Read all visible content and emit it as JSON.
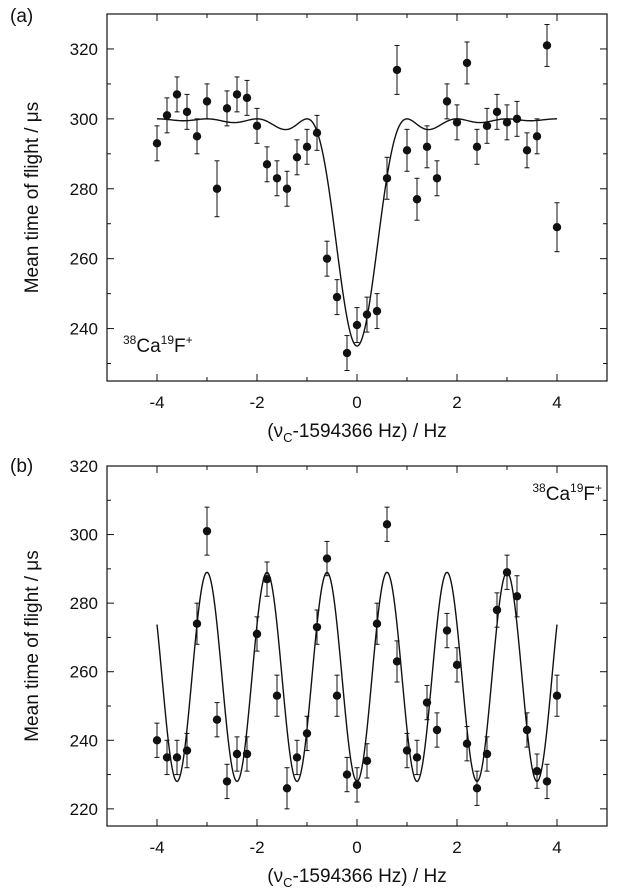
{
  "chart_data": [
    {
      "type": "scatter",
      "panel_label": "(a)",
      "annotation": {
        "m1": "38",
        "e1": "Ca",
        "m2": "19",
        "e2": "F",
        "charge": "+"
      },
      "xlabel": {
        "pre": "(ν",
        "sub": "C",
        "post": "-1594366 Hz) / Hz"
      },
      "ylabel": "Mean time of flight / μs",
      "xlim": [
        -5,
        5
      ],
      "ylim": [
        225,
        330
      ],
      "xticks": [
        -4,
        -2,
        0,
        2,
        4
      ],
      "xtick_labels": [
        "-4",
        "-2",
        "0",
        "2",
        "4"
      ],
      "yticks": [
        240,
        260,
        280,
        300,
        320
      ],
      "ytick_labels": [
        "240",
        "260",
        "280",
        "300",
        "320"
      ],
      "fit": "resonance-line",
      "points": [
        {
          "x": -4.0,
          "y": 293,
          "err": 5
        },
        {
          "x": -3.8,
          "y": 301,
          "err": 5
        },
        {
          "x": -3.6,
          "y": 307,
          "err": 5
        },
        {
          "x": -3.4,
          "y": 302,
          "err": 5
        },
        {
          "x": -3.2,
          "y": 295,
          "err": 5
        },
        {
          "x": -3.0,
          "y": 305,
          "err": 5
        },
        {
          "x": -2.8,
          "y": 280,
          "err": 8
        },
        {
          "x": -2.6,
          "y": 303,
          "err": 5
        },
        {
          "x": -2.4,
          "y": 307,
          "err": 5
        },
        {
          "x": -2.2,
          "y": 306,
          "err": 5
        },
        {
          "x": -2.0,
          "y": 298,
          "err": 5
        },
        {
          "x": -1.8,
          "y": 287,
          "err": 5
        },
        {
          "x": -1.6,
          "y": 283,
          "err": 5
        },
        {
          "x": -1.4,
          "y": 280,
          "err": 5
        },
        {
          "x": -1.2,
          "y": 289,
          "err": 5
        },
        {
          "x": -1.0,
          "y": 292,
          "err": 5
        },
        {
          "x": -0.8,
          "y": 296,
          "err": 5
        },
        {
          "x": -0.6,
          "y": 260,
          "err": 5
        },
        {
          "x": -0.4,
          "y": 249,
          "err": 5
        },
        {
          "x": -0.2,
          "y": 233,
          "err": 5
        },
        {
          "x": 0.0,
          "y": 241,
          "err": 5
        },
        {
          "x": 0.2,
          "y": 244,
          "err": 5
        },
        {
          "x": 0.4,
          "y": 245,
          "err": 5
        },
        {
          "x": 0.6,
          "y": 283,
          "err": 6
        },
        {
          "x": 0.8,
          "y": 314,
          "err": 7
        },
        {
          "x": 1.0,
          "y": 291,
          "err": 6
        },
        {
          "x": 1.2,
          "y": 277,
          "err": 6
        },
        {
          "x": 1.4,
          "y": 292,
          "err": 6
        },
        {
          "x": 1.6,
          "y": 283,
          "err": 5
        },
        {
          "x": 1.8,
          "y": 305,
          "err": 5
        },
        {
          "x": 2.0,
          "y": 299,
          "err": 5
        },
        {
          "x": 2.2,
          "y": 316,
          "err": 6
        },
        {
          "x": 2.4,
          "y": 292,
          "err": 5
        },
        {
          "x": 2.6,
          "y": 298,
          "err": 5
        },
        {
          "x": 2.8,
          "y": 302,
          "err": 5
        },
        {
          "x": 3.0,
          "y": 299,
          "err": 5
        },
        {
          "x": 3.2,
          "y": 300,
          "err": 5
        },
        {
          "x": 3.4,
          "y": 291,
          "err": 5
        },
        {
          "x": 3.6,
          "y": 295,
          "err": 5
        },
        {
          "x": 3.8,
          "y": 321,
          "err": 6
        },
        {
          "x": 4.0,
          "y": 269,
          "err": 7
        }
      ]
    },
    {
      "type": "scatter",
      "panel_label": "(b)",
      "annotation": {
        "m1": "38",
        "e1": "Ca",
        "m2": "19",
        "e2": "F",
        "charge": "+"
      },
      "xlabel": {
        "pre": "(ν",
        "sub": "C",
        "post": "-1594366 Hz) / Hz"
      },
      "ylabel": "Mean time of flight / μs",
      "xlim": [
        -5,
        5
      ],
      "ylim": [
        215,
        320
      ],
      "xticks": [
        -4,
        -2,
        0,
        2,
        4
      ],
      "xtick_labels": [
        "-4",
        "-2",
        "0",
        "2",
        "4"
      ],
      "yticks": [
        220,
        240,
        260,
        280,
        300,
        320
      ],
      "ytick_labels": [
        "220",
        "240",
        "260",
        "280",
        "300",
        "320"
      ],
      "fit": "ramsey-line",
      "points": [
        {
          "x": -4.0,
          "y": 240,
          "err": 5
        },
        {
          "x": -3.8,
          "y": 235,
          "err": 5
        },
        {
          "x": -3.6,
          "y": 235,
          "err": 5
        },
        {
          "x": -3.4,
          "y": 237,
          "err": 5
        },
        {
          "x": -3.2,
          "y": 274,
          "err": 6
        },
        {
          "x": -3.0,
          "y": 301,
          "err": 7
        },
        {
          "x": -2.8,
          "y": 246,
          "err": 5
        },
        {
          "x": -2.6,
          "y": 228,
          "err": 5
        },
        {
          "x": -2.4,
          "y": 236,
          "err": 5
        },
        {
          "x": -2.2,
          "y": 236,
          "err": 5
        },
        {
          "x": -2.0,
          "y": 271,
          "err": 5
        },
        {
          "x": -1.8,
          "y": 287,
          "err": 5
        },
        {
          "x": -1.6,
          "y": 253,
          "err": 6
        },
        {
          "x": -1.4,
          "y": 226,
          "err": 6
        },
        {
          "x": -1.2,
          "y": 235,
          "err": 5
        },
        {
          "x": -1.0,
          "y": 242,
          "err": 5
        },
        {
          "x": -0.8,
          "y": 273,
          "err": 5
        },
        {
          "x": -0.6,
          "y": 293,
          "err": 5
        },
        {
          "x": -0.4,
          "y": 253,
          "err": 6
        },
        {
          "x": -0.2,
          "y": 230,
          "err": 5
        },
        {
          "x": 0.0,
          "y": 227,
          "err": 5
        },
        {
          "x": 0.2,
          "y": 234,
          "err": 5
        },
        {
          "x": 0.4,
          "y": 274,
          "err": 6
        },
        {
          "x": 0.6,
          "y": 303,
          "err": 5
        },
        {
          "x": 0.8,
          "y": 263,
          "err": 6
        },
        {
          "x": 1.0,
          "y": 237,
          "err": 5
        },
        {
          "x": 1.2,
          "y": 235,
          "err": 5
        },
        {
          "x": 1.4,
          "y": 251,
          "err": 5
        },
        {
          "x": 1.6,
          "y": 243,
          "err": 5
        },
        {
          "x": 1.8,
          "y": 272,
          "err": 5
        },
        {
          "x": 2.0,
          "y": 262,
          "err": 5
        },
        {
          "x": 2.2,
          "y": 239,
          "err": 5
        },
        {
          "x": 2.4,
          "y": 226,
          "err": 5
        },
        {
          "x": 2.6,
          "y": 236,
          "err": 5
        },
        {
          "x": 2.8,
          "y": 278,
          "err": 5
        },
        {
          "x": 3.0,
          "y": 289,
          "err": 5
        },
        {
          "x": 3.2,
          "y": 282,
          "err": 6
        },
        {
          "x": 3.4,
          "y": 243,
          "err": 5
        },
        {
          "x": 3.6,
          "y": 231,
          "err": 5
        },
        {
          "x": 3.8,
          "y": 228,
          "err": 5
        },
        {
          "x": 4.0,
          "y": 253,
          "err": 6
        }
      ]
    }
  ]
}
